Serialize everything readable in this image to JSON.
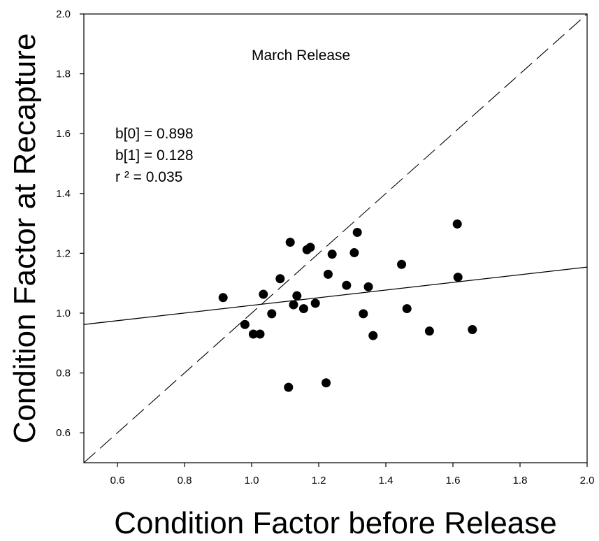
{
  "chart_data": {
    "type": "scatter",
    "title": "",
    "xlabel": "Condition Factor before Release",
    "ylabel": "Condition Factor at Recapture",
    "xlim": [
      0.5,
      2.0
    ],
    "ylim": [
      0.5,
      2.0
    ],
    "x_ticks": [
      "0.6",
      "0.8",
      "1.0",
      "1.2",
      "1.4",
      "1.6",
      "1.8",
      "2.0"
    ],
    "y_ticks": [
      "0.6",
      "0.8",
      "1.0",
      "1.2",
      "1.4",
      "1.6",
      "1.8",
      "2.0"
    ],
    "grid": false,
    "annotations": {
      "panel_label": "March Release",
      "b0": "b[0] = 0.898",
      "b1": "b[1] = 0.128",
      "r2": "r ² = 0.035"
    },
    "regression": {
      "intercept": 0.898,
      "slope": 0.128
    },
    "identity_line": true,
    "points": [
      {
        "x": 0.915,
        "y": 1.052
      },
      {
        "x": 0.98,
        "y": 0.962
      },
      {
        "x": 1.005,
        "y": 0.93
      },
      {
        "x": 1.025,
        "y": 0.93
      },
      {
        "x": 1.035,
        "y": 1.063
      },
      {
        "x": 1.06,
        "y": 0.998
      },
      {
        "x": 1.085,
        "y": 1.115
      },
      {
        "x": 1.11,
        "y": 0.752
      },
      {
        "x": 1.115,
        "y": 1.237
      },
      {
        "x": 1.125,
        "y": 1.028
      },
      {
        "x": 1.135,
        "y": 1.058
      },
      {
        "x": 1.155,
        "y": 1.015
      },
      {
        "x": 1.165,
        "y": 1.212
      },
      {
        "x": 1.175,
        "y": 1.22
      },
      {
        "x": 1.19,
        "y": 1.033
      },
      {
        "x": 1.222,
        "y": 0.767
      },
      {
        "x": 1.228,
        "y": 1.13
      },
      {
        "x": 1.24,
        "y": 1.197
      },
      {
        "x": 1.283,
        "y": 1.093
      },
      {
        "x": 1.306,
        "y": 1.202
      },
      {
        "x": 1.315,
        "y": 1.27
      },
      {
        "x": 1.333,
        "y": 0.998
      },
      {
        "x": 1.348,
        "y": 1.088
      },
      {
        "x": 1.362,
        "y": 0.925
      },
      {
        "x": 1.447,
        "y": 1.163
      },
      {
        "x": 1.463,
        "y": 1.015
      },
      {
        "x": 1.53,
        "y": 0.94
      },
      {
        "x": 1.613,
        "y": 1.298
      },
      {
        "x": 1.615,
        "y": 1.12
      },
      {
        "x": 1.658,
        "y": 0.945
      }
    ]
  }
}
